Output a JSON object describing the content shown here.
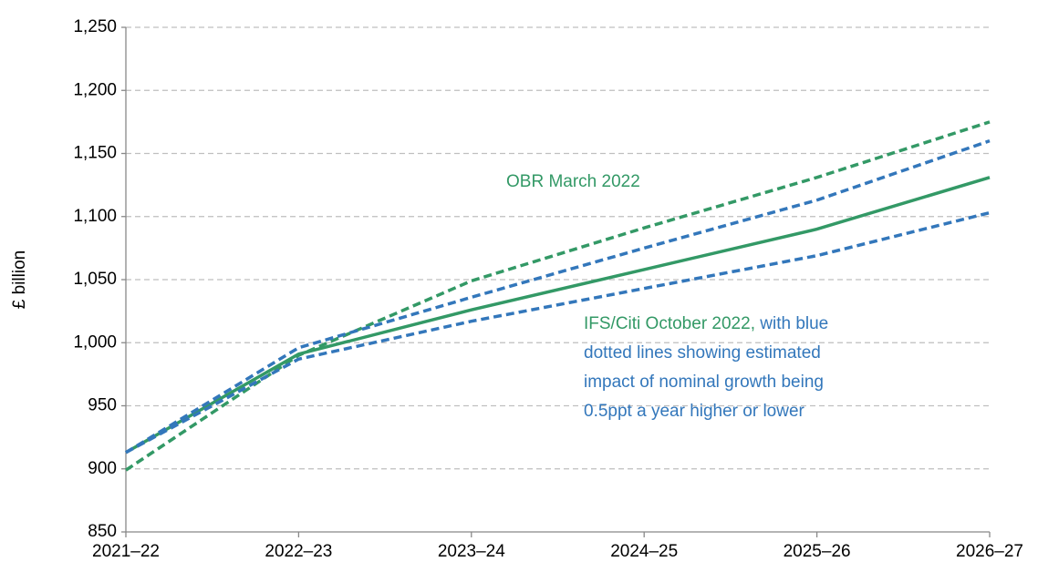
{
  "chart_data": {
    "type": "line",
    "y_label": "£ billion",
    "x": [
      "2021–22",
      "2022–23",
      "2023–24",
      "2024–25",
      "2025–26",
      "2026–27"
    ],
    "series": [
      {
        "color": "#339966",
        "dashed": true,
        "values": [
          899,
          990,
          1049,
          1091,
          1131,
          1175
        ]
      },
      {
        "color": "#339966",
        "dashed": false,
        "values": [
          913,
          991,
          1026,
          1058,
          1090,
          1131
        ]
      },
      {
        "color": "#3377bb",
        "dashed": true,
        "values": [
          913,
          996,
          1036,
          1075,
          1113,
          1160
        ]
      },
      {
        "color": "#3377bb",
        "dashed": true,
        "values": [
          913,
          987,
          1017,
          1043,
          1069,
          1103
        ]
      }
    ],
    "ylim": [
      850,
      1250
    ],
    "yticks": [
      850,
      900,
      950,
      {
        "value": 1000,
        "label": "1,000"
      },
      {
        "value": 1050,
        "label": "1,050"
      },
      {
        "value": 1100,
        "label": "1,100"
      },
      {
        "value": 1150,
        "label": "1,150"
      },
      {
        "value": 1200,
        "label": "1,200"
      },
      {
        "value": 1250,
        "label": "1,250"
      }
    ],
    "grid": true,
    "annotations": [
      {
        "lines": [
          [
            {
              "text": "OBR March 2022",
              "color": "#339966"
            }
          ]
        ]
      },
      {
        "lines": [
          [
            {
              "text": "IFS/Citi October 2022,",
              "color": "#339966"
            },
            {
              "text": " with blue",
              "color": "#3377bb"
            }
          ],
          [
            {
              "text": "dotted lines showing estimated",
              "color": "#3377bb"
            }
          ],
          [
            {
              "text": "impact of nominal growth being",
              "color": "#3377bb"
            }
          ],
          [
            {
              "text": "0.5ppt a year higher or lower",
              "color": "#3377bb"
            }
          ]
        ]
      }
    ]
  }
}
